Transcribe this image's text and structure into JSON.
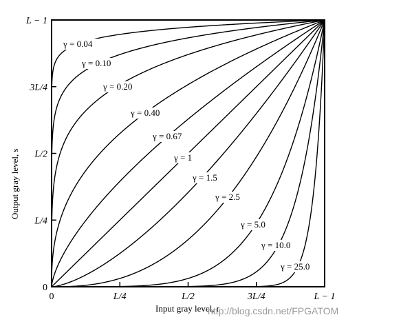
{
  "chart_data": {
    "type": "line",
    "title": "",
    "xlabel": "Input gray level, r",
    "ylabel": "Output gray level, s",
    "xlim": [
      0,
      1
    ],
    "ylim": [
      0,
      1
    ],
    "grid": false,
    "x_ticks": [
      {
        "value": 0,
        "label": "0"
      },
      {
        "value": 0.25,
        "label": "L/4"
      },
      {
        "value": 0.5,
        "label": "L/2"
      },
      {
        "value": 0.75,
        "label": "3L/4"
      },
      {
        "value": 1,
        "label": "L − 1"
      }
    ],
    "y_ticks": [
      {
        "value": 0,
        "label": "0"
      },
      {
        "value": 0.25,
        "label": "L/4"
      },
      {
        "value": 0.5,
        "label": "L/2"
      },
      {
        "value": 0.75,
        "label": "3L/4"
      },
      {
        "value": 1,
        "label": "L − 1"
      }
    ],
    "series": [
      {
        "name": "γ = 0.04",
        "gamma": 0.04
      },
      {
        "name": "γ = 0.10",
        "gamma": 0.1
      },
      {
        "name": "γ = 0.20",
        "gamma": 0.2
      },
      {
        "name": "γ = 0.40",
        "gamma": 0.4
      },
      {
        "name": "γ = 0.67",
        "gamma": 0.67
      },
      {
        "name": "γ = 1",
        "gamma": 1
      },
      {
        "name": "γ = 1.5",
        "gamma": 1.5
      },
      {
        "name": "γ = 2.5",
        "gamma": 2.5
      },
      {
        "name": "γ = 5.0",
        "gamma": 5.0
      },
      {
        "name": "γ = 10.0",
        "gamma": 10.0
      },
      {
        "name": "γ = 25.0",
        "gamma": 25.0
      }
    ]
  },
  "watermark": "http://blog.csdn.net/FPGATOM"
}
